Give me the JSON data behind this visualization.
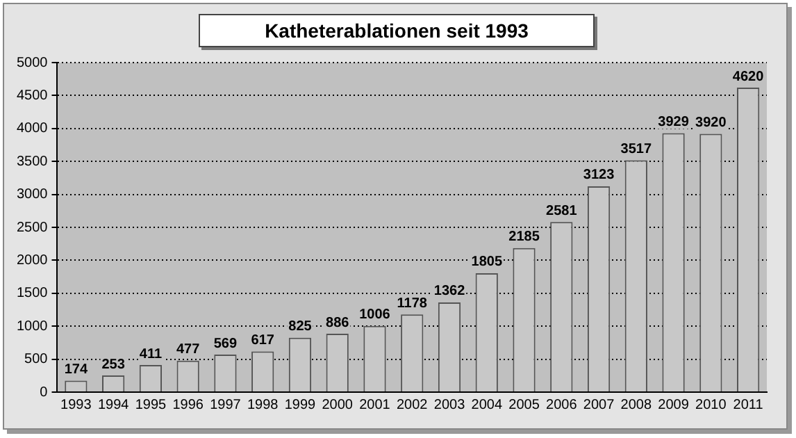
{
  "chart_data": {
    "type": "bar",
    "title": "Katheterablationen seit 1993",
    "categories": [
      "1993",
      "1994",
      "1995",
      "1996",
      "1997",
      "1998",
      "1999",
      "2000",
      "2001",
      "2002",
      "2003",
      "2004",
      "2005",
      "2006",
      "2007",
      "2008",
      "2009",
      "2010",
      "2011"
    ],
    "values": [
      174,
      253,
      411,
      477,
      569,
      617,
      825,
      886,
      1006,
      1178,
      1362,
      1805,
      2185,
      2581,
      3123,
      3517,
      3929,
      3920,
      4620
    ],
    "color": "#c8c8c8",
    "ylim": [
      0,
      5000
    ],
    "yticks": [
      0,
      500,
      1000,
      1500,
      2000,
      2500,
      3000,
      3500,
      4000,
      4500,
      5000
    ],
    "grid": "y",
    "legend": false,
    "data_labels": true
  }
}
